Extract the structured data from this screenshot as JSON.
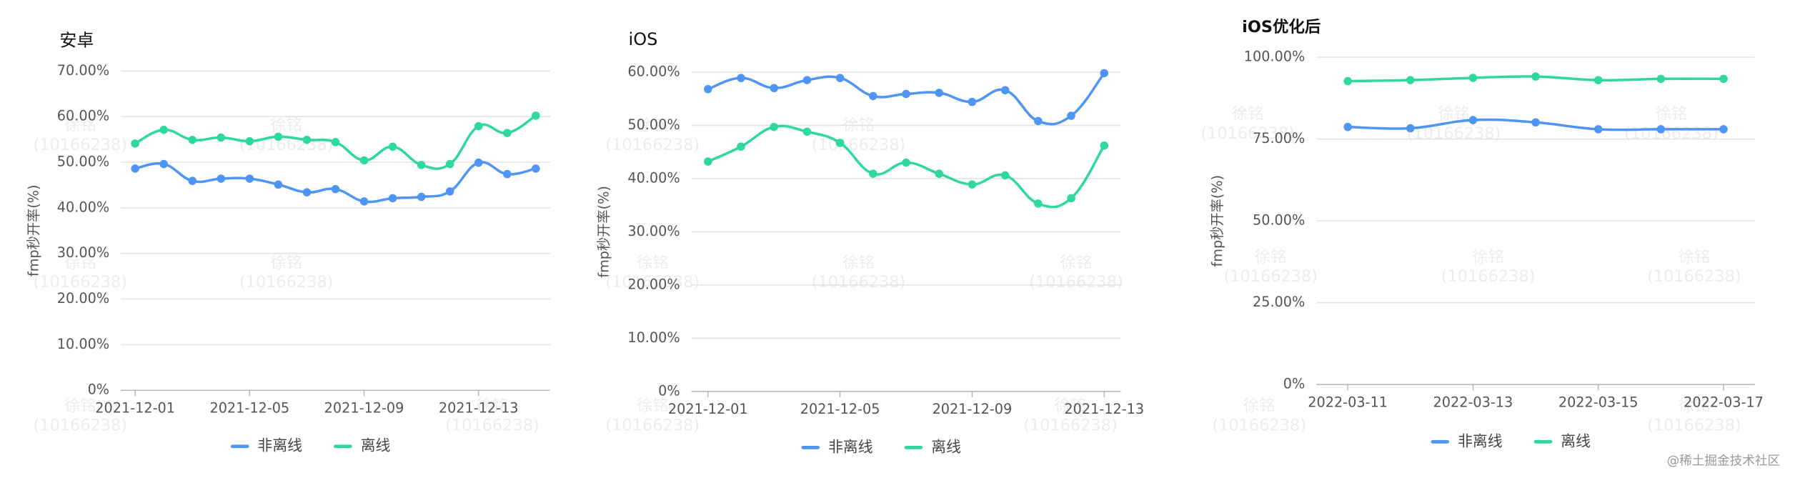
{
  "chart_data": [
    {
      "type": "line",
      "title": "安卓",
      "y_label": "fmp秒开率(%)",
      "categories": [
        "2021-12-01",
        null,
        null,
        null,
        "2021-12-05",
        null,
        null,
        null,
        "2021-12-09",
        null,
        null,
        null,
        "2021-12-13",
        null,
        null
      ],
      "series": [
        {
          "name": "非离线",
          "color": "#4f95f7",
          "values": [
            48.6,
            49.6,
            45.9,
            46.4,
            46.4,
            45.1,
            43.4,
            44.1,
            41.4,
            42.1,
            42.4,
            43.6,
            49.9,
            47.4,
            48.6
          ]
        },
        {
          "name": "离线",
          "color": "#2fd89c",
          "values": [
            54.1,
            57.1,
            54.9,
            55.4,
            54.6,
            55.6,
            54.9,
            54.4,
            50.4,
            53.4,
            49.4,
            49.6,
            57.9,
            56.4,
            60.2
          ]
        }
      ],
      "ylim": [
        0,
        70
      ],
      "yticks": [
        {
          "value": 0,
          "label": "0%"
        },
        {
          "value": 10,
          "label": "10.00%"
        },
        {
          "value": 20,
          "label": "20.00%"
        },
        {
          "value": 30,
          "label": "30.00%"
        },
        {
          "value": 40,
          "label": "40.00%"
        },
        {
          "value": 50,
          "label": "50.00%"
        },
        {
          "value": 60,
          "label": "60.00%"
        },
        {
          "value": 70,
          "label": "70.00%"
        }
      ],
      "grid": true,
      "legend": "bottom"
    },
    {
      "type": "line",
      "title": "iOS",
      "y_label": "fmp秒开率(%)",
      "categories": [
        "2021-12-01",
        null,
        null,
        null,
        "2021-12-05",
        null,
        null,
        null,
        "2021-12-09",
        null,
        null,
        null,
        "2021-12-13"
      ],
      "series": [
        {
          "name": "非离线",
          "color": "#4f95f7",
          "values": [
            56.8,
            58.9,
            57.0,
            58.5,
            58.9,
            55.5,
            55.9,
            56.1,
            54.4,
            56.6,
            50.8,
            51.8,
            59.8
          ]
        },
        {
          "name": "离线",
          "color": "#2fd89c",
          "values": [
            43.2,
            46.0,
            49.7,
            48.8,
            46.7,
            40.9,
            43.0,
            40.9,
            38.9,
            40.6,
            35.3,
            36.3,
            46.2
          ]
        }
      ],
      "ylim": [
        0,
        60
      ],
      "yticks": [
        {
          "value": 0,
          "label": "0%"
        },
        {
          "value": 10,
          "label": "10.00%"
        },
        {
          "value": 20,
          "label": "20.00%"
        },
        {
          "value": 30,
          "label": "30.00%"
        },
        {
          "value": 40,
          "label": "40.00%"
        },
        {
          "value": 50,
          "label": "50.00%"
        },
        {
          "value": 60,
          "label": "60.00%"
        }
      ],
      "grid": true,
      "legend": "bottom"
    },
    {
      "type": "line",
      "title": "iOS优化后",
      "y_label": "fmp秒开率(%)",
      "categories": [
        "2022-03-11",
        null,
        "2022-03-13",
        null,
        "2022-03-15",
        null,
        "2022-03-17"
      ],
      "series": [
        {
          "name": "非离线",
          "color": "#4f95f7",
          "values": [
            78.7,
            78.3,
            80.8,
            80.1,
            78.0,
            78.0,
            78.0
          ]
        },
        {
          "name": "离线",
          "color": "#2fd89c",
          "values": [
            92.7,
            93.0,
            93.7,
            94.1,
            93.0,
            93.4,
            93.4
          ]
        }
      ],
      "ylim": [
        0,
        100
      ],
      "yticks": [
        {
          "value": 0,
          "label": "0%"
        },
        {
          "value": 25,
          "label": "25.00%"
        },
        {
          "value": 50,
          "label": "50.00%"
        },
        {
          "value": 75,
          "label": "75.00%"
        },
        {
          "value": 100,
          "label": "100.00%"
        }
      ],
      "grid": true,
      "legend": "bottom"
    }
  ],
  "watermark": {
    "name": "徐铭",
    "id": "(10166238)"
  },
  "footer": "@稀土掘金技术社区"
}
